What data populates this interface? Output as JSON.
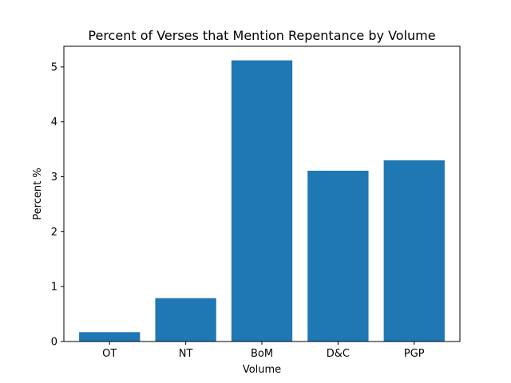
{
  "chart_data": {
    "type": "bar",
    "title": "Percent of Verses that Mention Repentance by Volume",
    "xlabel": "Volume",
    "ylabel": "Percent %",
    "categories": [
      "OT",
      "NT",
      "BoM",
      "D&C",
      "PGP"
    ],
    "values": [
      0.17,
      0.79,
      5.12,
      3.11,
      3.3
    ],
    "ylim": [
      0,
      5.376
    ],
    "yticks": [
      0,
      1,
      2,
      3,
      4,
      5
    ],
    "ytick_labels": [
      "0",
      "1",
      "2",
      "3",
      "4",
      "5"
    ],
    "grid": false,
    "bar_color": "#1f77b4"
  }
}
